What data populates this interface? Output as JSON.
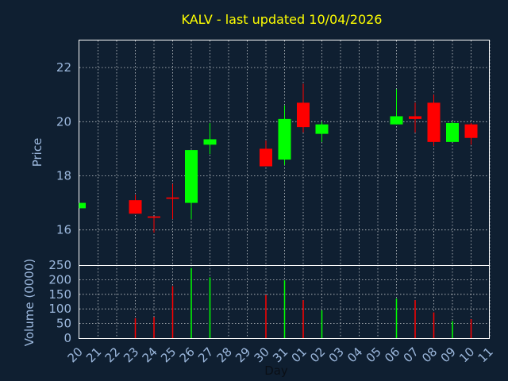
{
  "chart_data": [
    {
      "type": "candlestick",
      "title": "KALV - last updated 10/04/2026",
      "ylabel": "Price",
      "ylim": [
        14.7,
        23.0
      ],
      "yticks": [
        "16",
        "18",
        "20",
        "22"
      ],
      "grid": true,
      "days": [
        "20",
        "21",
        "22",
        "23",
        "24",
        "25",
        "26",
        "27",
        "28",
        "29",
        "30",
        "31",
        "01",
        "02",
        "03",
        "04",
        "05",
        "06",
        "07",
        "08",
        "09",
        "10",
        "11"
      ],
      "candles": [
        {
          "day": "20",
          "open": 16.8,
          "close": 17.0,
          "high": 17.0,
          "low": 16.8
        },
        {
          "day": "23",
          "open": 17.1,
          "close": 16.6,
          "high": 17.3,
          "low": 16.6
        },
        {
          "day": "24",
          "open": 16.5,
          "close": 16.45,
          "high": 16.5,
          "low": 15.9
        },
        {
          "day": "25",
          "open": 17.2,
          "close": 17.15,
          "high": 17.7,
          "low": 16.4
        },
        {
          "day": "26",
          "open": 17.0,
          "close": 18.95,
          "high": 18.95,
          "low": 16.4
        },
        {
          "day": "27",
          "open": 19.15,
          "close": 19.35,
          "high": 19.95,
          "low": 18.8
        },
        {
          "day": "30",
          "open": 19.0,
          "close": 18.35,
          "high": 19.3,
          "low": 18.35
        },
        {
          "day": "31",
          "open": 18.6,
          "close": 20.1,
          "high": 20.6,
          "low": 18.4
        },
        {
          "day": "01",
          "open": 20.7,
          "close": 19.8,
          "high": 21.4,
          "low": 19.6
        },
        {
          "day": "02",
          "open": 19.55,
          "close": 19.9,
          "high": 20.0,
          "low": 19.25
        },
        {
          "day": "06",
          "open": 19.9,
          "close": 20.2,
          "high": 21.2,
          "low": 19.9
        },
        {
          "day": "07",
          "open": 20.2,
          "close": 20.1,
          "high": 20.7,
          "low": 19.6
        },
        {
          "day": "08",
          "open": 20.7,
          "close": 19.25,
          "high": 21.0,
          "low": 19.1
        },
        {
          "day": "09",
          "open": 19.25,
          "close": 19.95,
          "high": 20.0,
          "low": 19.25
        },
        {
          "day": "10",
          "open": 19.9,
          "close": 19.4,
          "high": 19.95,
          "low": 19.15
        }
      ],
      "colors": {
        "up": "#00ff00",
        "down": "#ff0000",
        "background": "#0f1f31",
        "grid": "#ffffff"
      }
    },
    {
      "type": "bar",
      "xlabel": "Day",
      "ylabel": "Volume (0000)",
      "ylim": [
        0,
        250
      ],
      "yticks": [
        "0",
        "50",
        "100",
        "150",
        "200",
        "250"
      ],
      "grid": true,
      "days": [
        "20",
        "21",
        "22",
        "23",
        "24",
        "25",
        "26",
        "27",
        "28",
        "29",
        "30",
        "31",
        "01",
        "02",
        "03",
        "04",
        "05",
        "06",
        "07",
        "08",
        "09",
        "10",
        "11"
      ],
      "bars": [
        {
          "day": "23",
          "value": 68,
          "dir": "down"
        },
        {
          "day": "24",
          "value": 72,
          "dir": "down"
        },
        {
          "day": "25",
          "value": 178,
          "dir": "down"
        },
        {
          "day": "26",
          "value": 240,
          "dir": "up"
        },
        {
          "day": "27",
          "value": 208,
          "dir": "up"
        },
        {
          "day": "30",
          "value": 148,
          "dir": "down"
        },
        {
          "day": "31",
          "value": 198,
          "dir": "up"
        },
        {
          "day": "01",
          "value": 130,
          "dir": "down"
        },
        {
          "day": "02",
          "value": 95,
          "dir": "up"
        },
        {
          "day": "06",
          "value": 135,
          "dir": "up"
        },
        {
          "day": "07",
          "value": 130,
          "dir": "down"
        },
        {
          "day": "08",
          "value": 88,
          "dir": "down"
        },
        {
          "day": "09",
          "value": 58,
          "dir": "up"
        },
        {
          "day": "10",
          "value": 65,
          "dir": "down"
        }
      ]
    }
  ]
}
